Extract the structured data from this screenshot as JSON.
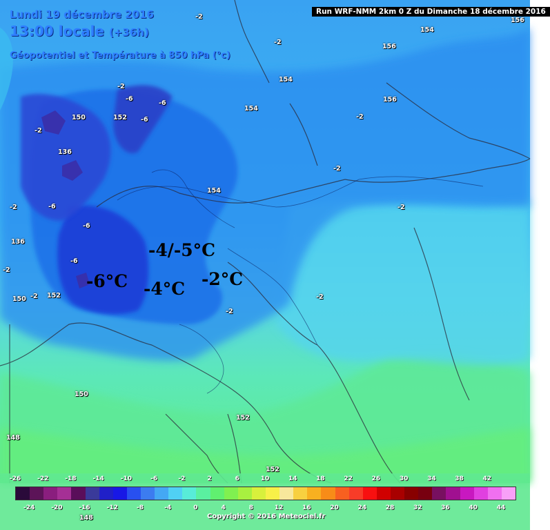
{
  "header": {
    "date": "Lundi 19 décembre 2016",
    "time": "13:00 locale",
    "time_offset": "(+36h)",
    "parameter": "Géopotentiel et Température à 850 hPa (°c)",
    "run_info": "Run WRF-NMM 2km 0 Z du Dimanche 18 décembre 2016"
  },
  "annotations": [
    "-4/-5°C",
    "-6°C",
    "-4°C",
    "-2°C"
  ],
  "isotherm_labels": [
    "-2",
    "-6",
    "-2",
    "-2",
    "-2",
    "-2",
    "-6",
    "-2",
    "-6",
    "-2",
    "-6",
    "-6",
    "-6",
    "-2",
    "-2",
    "-2",
    "-2",
    "-2"
  ],
  "geopotential_labels": [
    "150",
    "152",
    "156",
    "154",
    "154",
    "156",
    "154",
    "154",
    "136",
    "136",
    "150",
    "152",
    "150",
    "152",
    "152",
    "148",
    "148",
    "156"
  ],
  "colorbar": {
    "colors": [
      "#2a0a3a",
      "#5c1458",
      "#8a1e7e",
      "#a53095",
      "#5a0e5a",
      "#3a3a9a",
      "#2020c8",
      "#1818e6",
      "#2850f0",
      "#3c7cf0",
      "#44a8f4",
      "#50d0f4",
      "#58ecd8",
      "#5af0a0",
      "#60f070",
      "#80f050",
      "#a8f040",
      "#d8f03c",
      "#f8f048",
      "#f8e89c",
      "#f8d040",
      "#f8b020",
      "#f88c18",
      "#f86020",
      "#f83c28",
      "#f81010",
      "#d00000",
      "#a80000",
      "#880000",
      "#780010",
      "#781060",
      "#a01090",
      "#c818c0",
      "#e040e0",
      "#f070f0",
      "#f8a0f8"
    ],
    "top_ticks": [
      "-26",
      "-22",
      "-18",
      "-14",
      "-10",
      "-6",
      "-2",
      "2",
      "6",
      "10",
      "14",
      "18",
      "22",
      "26",
      "30",
      "34",
      "38",
      "42"
    ],
    "bottom_ticks": [
      "-24",
      "-20",
      "-16",
      "-12",
      "-8",
      "-4",
      "0",
      "4",
      "8",
      "12",
      "16",
      "20",
      "24",
      "28",
      "32",
      "36",
      "40",
      "44"
    ]
  },
  "copyright": "Copyright © 2016 Meteociel.fr"
}
